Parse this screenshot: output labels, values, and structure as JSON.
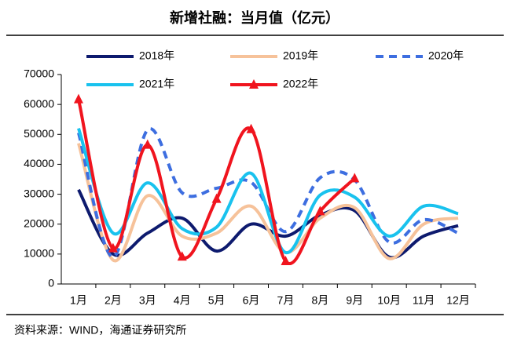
{
  "chart_data": {
    "type": "line",
    "title": "新增社融：当月值（亿元）",
    "source": "资料来源：WIND，海通证券研究所",
    "categories": [
      "1月",
      "2月",
      "3月",
      "4月",
      "5月",
      "6月",
      "7月",
      "8月",
      "9月",
      "10月",
      "11月",
      "12月"
    ],
    "ylim": [
      0,
      70000
    ],
    "yticks": [
      0,
      10000,
      20000,
      30000,
      40000,
      50000,
      60000,
      70000
    ],
    "smooth": true,
    "series": [
      {
        "name": "2018年",
        "color": "#0d1a6e",
        "values": [
          31500,
          10000,
          17000,
          22000,
          11000,
          20000,
          16000,
          23000,
          24500,
          9000,
          16000,
          19500
        ]
      },
      {
        "name": "2019年",
        "color": "#f6c29a",
        "values": [
          47000,
          8000,
          29500,
          16000,
          17000,
          26000,
          10500,
          22000,
          25500,
          8500,
          20000,
          22000
        ]
      },
      {
        "name": "2020年",
        "color": "#3d6ee0",
        "dashed": true,
        "values": [
          50500,
          9000,
          51500,
          30500,
          32000,
          34000,
          17500,
          35500,
          34800,
          14000,
          21500,
          17000
        ]
      },
      {
        "name": "2021年",
        "color": "#19c2ee",
        "values": [
          52000,
          17000,
          33800,
          18500,
          19000,
          37000,
          10500,
          29700,
          29000,
          16000,
          26000,
          23500
        ]
      },
      {
        "name": "2022年",
        "color": "#f0141e",
        "marker": "triangle",
        "values": [
          61700,
          11900,
          46500,
          9100,
          28400,
          51700,
          7600,
          24300,
          35300,
          null,
          null,
          null
        ]
      }
    ]
  }
}
